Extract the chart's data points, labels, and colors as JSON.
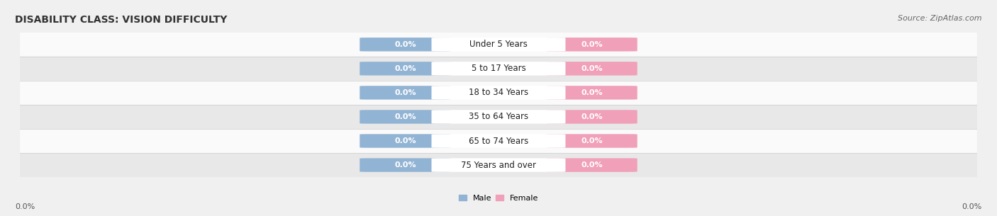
{
  "title": "DISABILITY CLASS: VISION DIFFICULTY",
  "source": "Source: ZipAtlas.com",
  "categories": [
    "Under 5 Years",
    "5 to 17 Years",
    "18 to 34 Years",
    "35 to 64 Years",
    "65 to 74 Years",
    "75 Years and over"
  ],
  "male_values": [
    0.0,
    0.0,
    0.0,
    0.0,
    0.0,
    0.0
  ],
  "female_values": [
    0.0,
    0.0,
    0.0,
    0.0,
    0.0,
    0.0
  ],
  "male_color": "#92b4d4",
  "female_color": "#f0a0b8",
  "male_label": "Male",
  "female_label": "Female",
  "background_color": "#f0f0f0",
  "row_colors": [
    "#fafafa",
    "#e8e8e8"
  ],
  "title_fontsize": 10,
  "source_fontsize": 8,
  "value_label_fontsize": 8,
  "category_fontsize": 8.5,
  "left_axis_label": "0.0%",
  "right_axis_label": "0.0%",
  "axis_label_fontsize": 8
}
